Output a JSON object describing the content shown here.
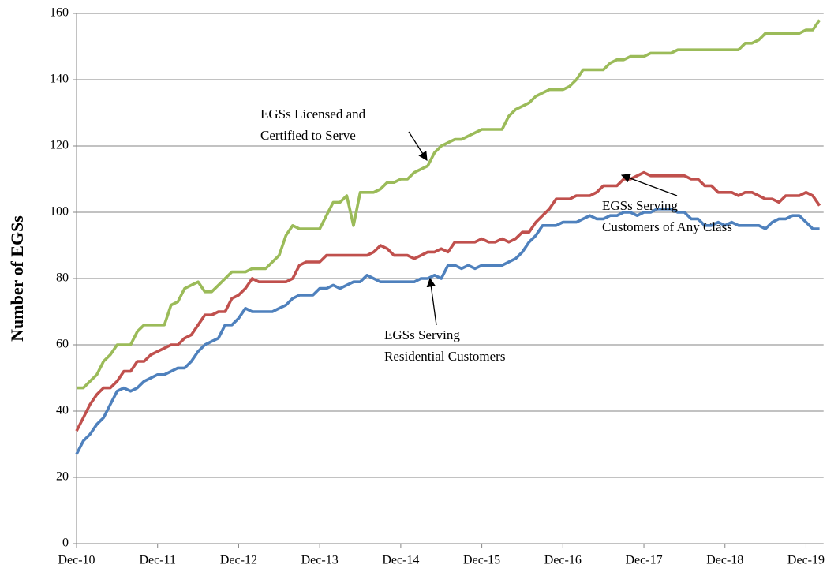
{
  "chart_data": {
    "type": "line",
    "y_label": "Number of EGSs",
    "categories": [
      "Dec-10",
      null,
      null,
      null,
      null,
      null,
      null,
      null,
      null,
      null,
      null,
      null,
      "Dec-11",
      null,
      null,
      null,
      null,
      null,
      null,
      null,
      null,
      null,
      null,
      null,
      "Dec-12",
      null,
      null,
      null,
      null,
      null,
      null,
      null,
      null,
      null,
      null,
      null,
      "Dec-13",
      null,
      null,
      null,
      null,
      null,
      null,
      null,
      null,
      null,
      null,
      null,
      "Dec-14",
      null,
      null,
      null,
      null,
      null,
      null,
      null,
      null,
      null,
      null,
      null,
      "Dec-15",
      null,
      null,
      null,
      null,
      null,
      null,
      null,
      null,
      null,
      null,
      null,
      "Dec-16",
      null,
      null,
      null,
      null,
      null,
      null,
      null,
      null,
      null,
      null,
      null,
      "Dec-17",
      null,
      null,
      null,
      null,
      null,
      null,
      null,
      null,
      null,
      null,
      null,
      "Dec-18",
      null,
      null,
      null,
      null,
      null,
      null,
      null,
      null,
      null,
      null,
      null,
      "Dec-19",
      null,
      null
    ],
    "series": [
      {
        "name": "EGSs Licensed and Certified to Serve",
        "color": "#9bbb59",
        "values": [
          47,
          47,
          49,
          51,
          55,
          57,
          60,
          60,
          60,
          64,
          66,
          66,
          66,
          66,
          72,
          73,
          77,
          78,
          79,
          76,
          76,
          78,
          80,
          82,
          82,
          82,
          83,
          83,
          83,
          85,
          87,
          93,
          96,
          95,
          95,
          95,
          95,
          99,
          103,
          103,
          105,
          96,
          106,
          106,
          106,
          107,
          109,
          109,
          110,
          110,
          112,
          113,
          114,
          118,
          120,
          121,
          122,
          122,
          123,
          124,
          125,
          125,
          125,
          125,
          129,
          131,
          132,
          133,
          135,
          136,
          137,
          137,
          137,
          138,
          140,
          143,
          143,
          143,
          143,
          145,
          146,
          146,
          147,
          147,
          147,
          148,
          148,
          148,
          148,
          149,
          149,
          149,
          149,
          149,
          149,
          149,
          149,
          149,
          149,
          151,
          151,
          152,
          154,
          154,
          154,
          154,
          154,
          154,
          155,
          155,
          158
        ]
      },
      {
        "name": "EGSs Serving Customers of Any Class",
        "color": "#c0504d",
        "values": [
          34,
          38,
          42,
          45,
          47,
          47,
          49,
          52,
          52,
          55,
          55,
          57,
          58,
          59,
          60,
          60,
          62,
          63,
          66,
          69,
          69,
          70,
          70,
          74,
          75,
          77,
          80,
          79,
          79,
          79,
          79,
          79,
          80,
          84,
          85,
          85,
          85,
          87,
          87,
          87,
          87,
          87,
          87,
          87,
          88,
          90,
          89,
          87,
          87,
          87,
          86,
          87,
          88,
          88,
          89,
          88,
          91,
          91,
          91,
          91,
          92,
          91,
          91,
          92,
          91,
          92,
          94,
          94,
          97,
          99,
          101,
          104,
          104,
          104,
          105,
          105,
          105,
          106,
          108,
          108,
          108,
          110,
          110,
          111,
          112,
          111,
          111,
          111,
          111,
          111,
          111,
          110,
          110,
          108,
          108,
          106,
          106,
          106,
          105,
          106,
          106,
          105,
          104,
          104,
          103,
          105,
          105,
          105,
          106,
          105,
          102
        ]
      },
      {
        "name": "EGSs Serving Residential Customers",
        "color": "#4f81bd",
        "values": [
          27,
          31,
          33,
          36,
          38,
          42,
          46,
          47,
          46,
          47,
          49,
          50,
          51,
          51,
          52,
          53,
          53,
          55,
          58,
          60,
          61,
          62,
          66,
          66,
          68,
          71,
          70,
          70,
          70,
          70,
          71,
          72,
          74,
          75,
          75,
          75,
          77,
          77,
          78,
          77,
          78,
          79,
          79,
          81,
          80,
          79,
          79,
          79,
          79,
          79,
          79,
          80,
          80,
          81,
          80,
          84,
          84,
          83,
          84,
          83,
          84,
          84,
          84,
          84,
          85,
          86,
          88,
          91,
          93,
          96,
          96,
          96,
          97,
          97,
          97,
          98,
          99,
          98,
          98,
          99,
          99,
          100,
          100,
          99,
          100,
          100,
          101,
          101,
          101,
          100,
          100,
          98,
          98,
          96,
          96,
          97,
          96,
          97,
          96,
          96,
          96,
          96,
          95,
          97,
          98,
          98,
          99,
          99,
          97,
          95,
          95
        ]
      }
    ],
    "annotations": [
      {
        "lines": [
          "EGSs Licensed and",
          "Certified to Serve"
        ]
      },
      {
        "lines": [
          "EGSs Serving",
          "Customers of Any Class"
        ]
      },
      {
        "lines": [
          "EGSs Serving",
          "Residential Customers"
        ]
      }
    ],
    "ylim": [
      0,
      160
    ],
    "yticks": [
      0,
      20,
      40,
      60,
      80,
      100,
      120,
      140,
      160
    ],
    "grid": true
  }
}
